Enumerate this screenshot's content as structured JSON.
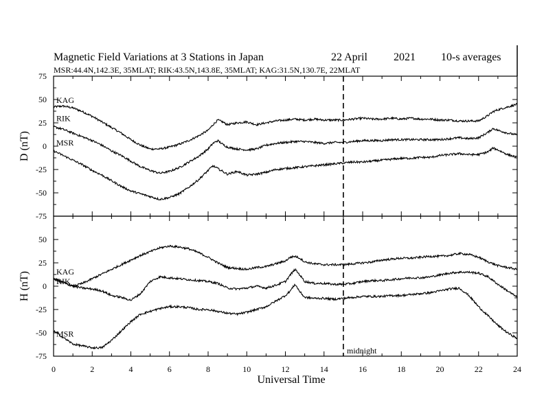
{
  "header": {
    "title": "Magnetic Field Variations at 3 Stations in Japan",
    "date": "22  April",
    "year": "2021",
    "averaging": "10-s averages",
    "stations_line": "MSR:44.4N,142.3E, 35MLAT;  RIK:43.5N,143.8E, 35MLAT;  KAG:31.5N,130.7E, 22MLAT"
  },
  "x_axis": {
    "label": "Universal Time",
    "min": 0,
    "max": 24,
    "ticks": [
      "0",
      "2",
      "4",
      "6",
      "8",
      "10",
      "12",
      "14",
      "16",
      "18",
      "20",
      "22",
      "24"
    ]
  },
  "annotation": {
    "text": "midnight",
    "x": 15
  },
  "colors": {
    "trace": "#000000",
    "axes": "#000000",
    "background": "#ffffff"
  },
  "chart_data": [
    {
      "type": "line",
      "ylabel": "D (nT)",
      "ylim": [
        -75,
        75
      ],
      "yticks": [
        "75",
        "50",
        "25",
        "0",
        "-25",
        "-50",
        "-75"
      ],
      "x": [
        0,
        0.5,
        1,
        1.5,
        2,
        2.5,
        3,
        3.5,
        4,
        4.5,
        5,
        5.5,
        6,
        6.5,
        7,
        7.5,
        8,
        8.25,
        8.5,
        8.75,
        9,
        9.5,
        10,
        10.5,
        11,
        11.5,
        12,
        12.5,
        13,
        13.5,
        14,
        14.5,
        15,
        15.5,
        16,
        16.5,
        17,
        17.5,
        18,
        18.5,
        19,
        19.5,
        20,
        20.5,
        21,
        21.5,
        22,
        22.5,
        22.75,
        23,
        23.5,
        24
      ],
      "series": [
        {
          "name": "KAG",
          "values": [
            42,
            43,
            41,
            37,
            32,
            26,
            20,
            14,
            7,
            1,
            -3,
            -3,
            -1,
            2,
            6,
            11,
            17,
            23,
            28,
            26,
            23,
            25,
            26,
            23,
            25,
            27,
            28,
            29,
            28,
            29,
            28,
            28,
            28,
            29,
            30,
            29,
            29,
            30,
            29,
            30,
            29,
            29,
            28,
            28,
            27,
            27,
            27,
            33,
            37,
            39,
            42,
            45
          ]
        },
        {
          "name": "RIK",
          "values": [
            21,
            18,
            14,
            10,
            6,
            1,
            -5,
            -10,
            -16,
            -22,
            -26,
            -29,
            -27,
            -23,
            -17,
            -11,
            -3,
            3,
            6,
            2,
            -1,
            -3,
            -4,
            -3,
            1,
            3,
            4,
            5,
            5,
            4,
            3,
            4,
            4,
            5,
            6,
            6,
            6,
            7,
            7,
            7,
            7,
            7,
            7,
            8,
            9,
            8,
            9,
            15,
            19,
            17,
            14,
            12
          ]
        },
        {
          "name": "MSR",
          "values": [
            -5,
            -10,
            -15,
            -20,
            -26,
            -31,
            -37,
            -43,
            -48,
            -51,
            -54,
            -57,
            -55,
            -51,
            -44,
            -36,
            -26,
            -21,
            -24,
            -27,
            -30,
            -27,
            -31,
            -30,
            -28,
            -25,
            -24,
            -23,
            -22,
            -21,
            -20,
            -19,
            -18,
            -17,
            -17,
            -16,
            -15,
            -14,
            -13,
            -13,
            -12,
            -12,
            -10,
            -9,
            -8,
            -9,
            -9,
            -6,
            -2,
            -4,
            -9,
            -12
          ]
        }
      ]
    },
    {
      "type": "line",
      "ylabel": "H (nT)",
      "ylim": [
        -75,
        75
      ],
      "yticks": [
        "75",
        "50",
        "25",
        "0",
        "-25",
        "-50",
        "-75"
      ],
      "x": [
        0,
        0.5,
        1,
        1.5,
        2,
        2.5,
        3,
        3.5,
        4,
        4.5,
        5,
        5.5,
        6,
        6.5,
        7,
        7.5,
        8,
        8.5,
        9,
        9.5,
        10,
        10.5,
        11,
        11.5,
        12,
        12.25,
        12.5,
        12.75,
        13,
        13.5,
        14,
        14.5,
        15,
        15.5,
        16,
        16.5,
        17,
        17.5,
        18,
        18.5,
        19,
        19.5,
        20,
        20.5,
        21,
        21.5,
        22,
        22.5,
        23,
        23.5,
        24
      ],
      "series": [
        {
          "name": "KAG",
          "values": [
            8,
            4,
            0,
            3,
            8,
            13,
            18,
            23,
            28,
            33,
            37,
            41,
            43,
            42,
            40,
            36,
            31,
            25,
            20,
            19,
            18,
            20,
            21,
            24,
            27,
            31,
            32,
            30,
            26,
            24,
            23,
            23,
            23,
            24,
            25,
            26,
            28,
            29,
            30,
            30,
            31,
            32,
            32,
            33,
            35,
            34,
            31,
            26,
            22,
            20,
            18
          ]
        },
        {
          "name": "RIK",
          "values": [
            8,
            4,
            0,
            -2,
            -3,
            -5,
            -10,
            -12,
            -15,
            -8,
            5,
            10,
            9,
            8,
            7,
            6,
            5,
            3,
            -2,
            -3,
            -2,
            0,
            -2,
            1,
            5,
            12,
            18,
            12,
            5,
            3,
            3,
            2,
            2,
            3,
            5,
            6,
            6,
            7,
            8,
            9,
            9,
            10,
            12,
            14,
            15,
            15,
            14,
            10,
            2,
            -5,
            -12
          ]
        },
        {
          "name": "MSR",
          "values": [
            -48,
            -55,
            -62,
            -64,
            -66,
            -66,
            -58,
            -48,
            -38,
            -30,
            -27,
            -24,
            -22,
            -22,
            -23,
            -25,
            -25,
            -27,
            -29,
            -30,
            -28,
            -25,
            -22,
            -16,
            -10,
            -5,
            2,
            -6,
            -12,
            -13,
            -13,
            -14,
            -13,
            -12,
            -11,
            -11,
            -11,
            -10,
            -10,
            -9,
            -8,
            -7,
            -5,
            -3,
            -2,
            -10,
            -22,
            -32,
            -42,
            -50,
            -56
          ]
        }
      ]
    }
  ]
}
